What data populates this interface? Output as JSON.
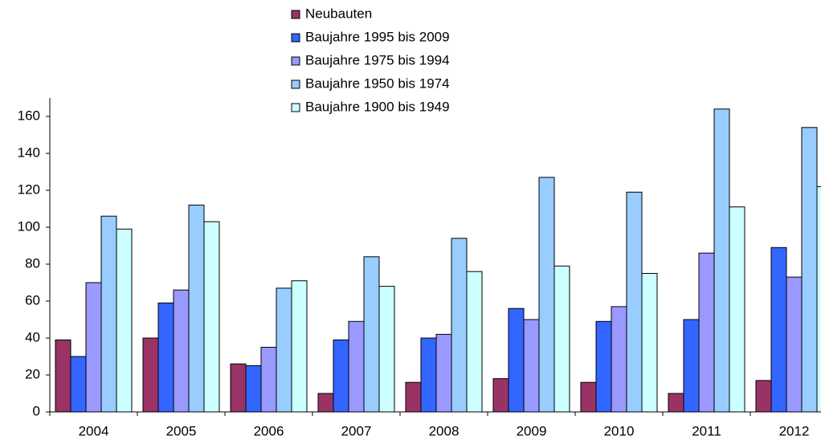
{
  "chart_data": {
    "type": "bar",
    "categories": [
      "2004",
      "2005",
      "2006",
      "2007",
      "2008",
      "2009",
      "2010",
      "2011",
      "2012"
    ],
    "series": [
      {
        "name": "Neubauten",
        "color": "#993366",
        "values": [
          39,
          40,
          26,
          10,
          16,
          18,
          16,
          10,
          17
        ]
      },
      {
        "name": "Baujahre 1995 bis 2009",
        "color": "#3366ff",
        "values": [
          30,
          59,
          25,
          39,
          40,
          56,
          49,
          50,
          89
        ]
      },
      {
        "name": "Baujahre 1975 bis 1994",
        "color": "#9999ff",
        "values": [
          70,
          66,
          35,
          49,
          42,
          50,
          57,
          86,
          73
        ]
      },
      {
        "name": "Baujahre 1950 bis 1974",
        "color": "#99ccff",
        "values": [
          106,
          112,
          67,
          84,
          94,
          127,
          119,
          164,
          154
        ]
      },
      {
        "name": "Baujahre 1900 bis 1949",
        "color": "#ccffff",
        "values": [
          99,
          103,
          71,
          68,
          76,
          79,
          75,
          111,
          122
        ]
      }
    ],
    "ylim": [
      0,
      170
    ],
    "yticks": [
      0,
      20,
      40,
      60,
      80,
      100,
      120,
      140,
      160
    ]
  }
}
